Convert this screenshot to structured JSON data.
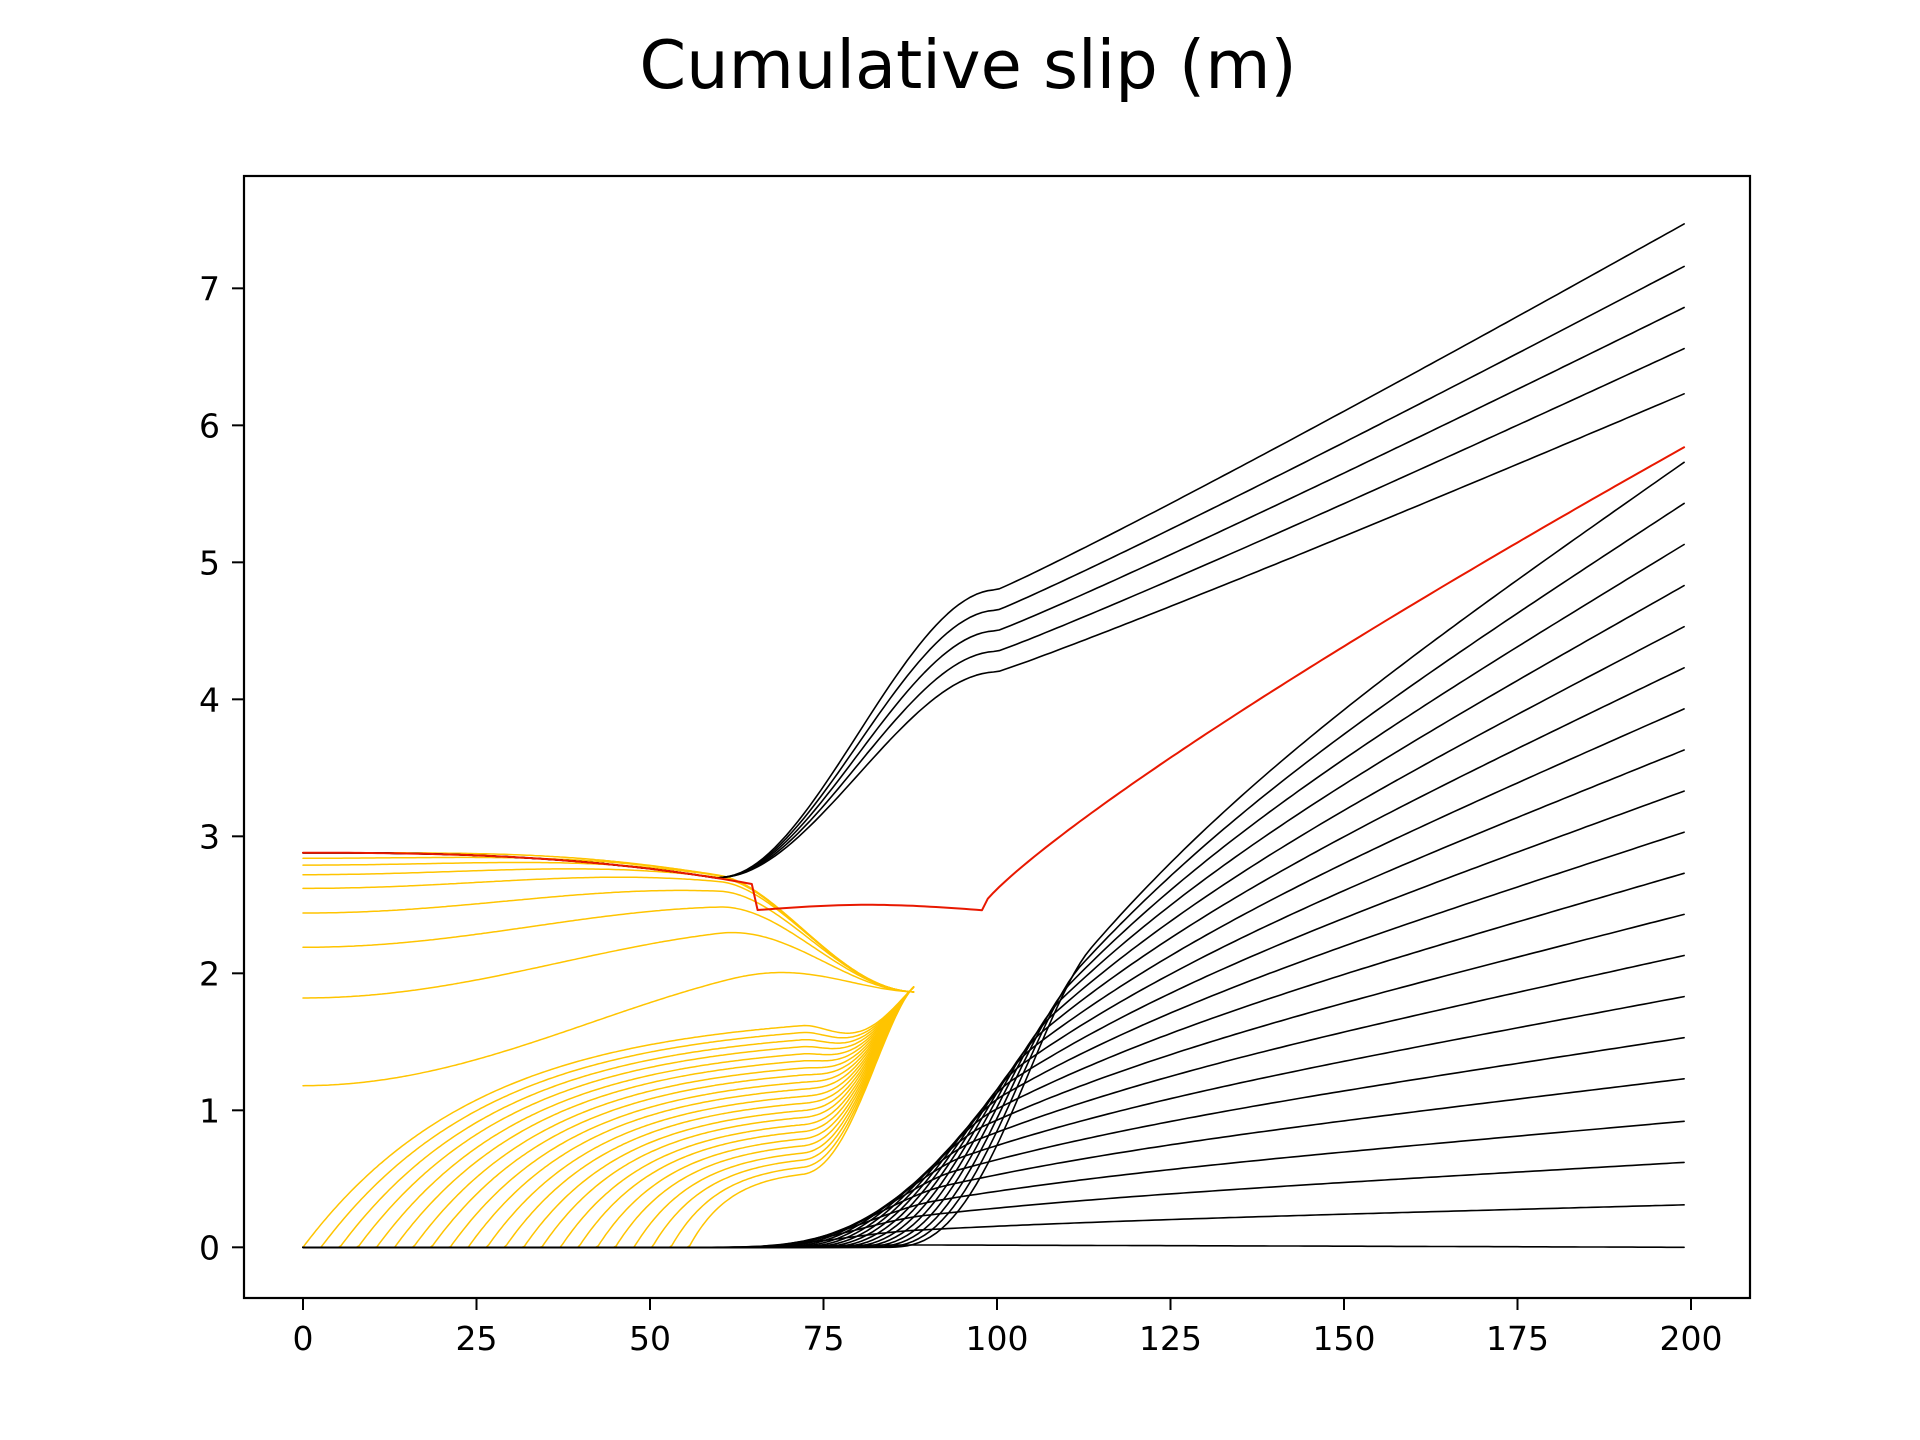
{
  "chart_data": {
    "type": "line",
    "title": "Cumulative slip (m)",
    "xlabel": "",
    "ylabel": "",
    "xlim": [
      -8.5,
      208.5
    ],
    "ylim": [
      -0.37,
      7.82
    ],
    "xticks": [
      0,
      25,
      50,
      75,
      100,
      125,
      150,
      175,
      200
    ],
    "yticks": [
      0,
      1,
      2,
      3,
      4,
      5,
      6,
      7
    ],
    "grid": false,
    "legend": "none",
    "colors": {
      "interseismic": "#000000",
      "coseismic": "#FFC400",
      "highlight": "#E81800"
    },
    "series_groups": {
      "interseismic_lower_ends": [
        0.0,
        0.31,
        0.62,
        0.92,
        1.23,
        1.53,
        1.83,
        2.13,
        2.43,
        2.73,
        3.03,
        3.33,
        3.63,
        3.93,
        4.23,
        4.53,
        4.83,
        5.13,
        5.43,
        5.73
      ],
      "interseismic_upper_ends": [
        6.23,
        6.56,
        6.86,
        7.16,
        7.47
      ],
      "highlight_end": 5.84,
      "coseismic_plateau_levels": [
        2.88,
        2.84,
        2.79,
        2.72,
        2.62,
        2.44,
        2.19,
        1.82,
        1.18
      ],
      "coseismic_onsets": [
        0,
        2.6,
        5.3,
        7.9,
        10.6,
        13.2,
        15.9,
        18.5,
        21.2,
        23.8,
        26.5,
        29.1,
        31.8,
        34.4,
        37.1,
        39.7,
        42.4,
        45.0,
        47.7,
        50.3,
        53.0,
        55.6
      ]
    }
  }
}
